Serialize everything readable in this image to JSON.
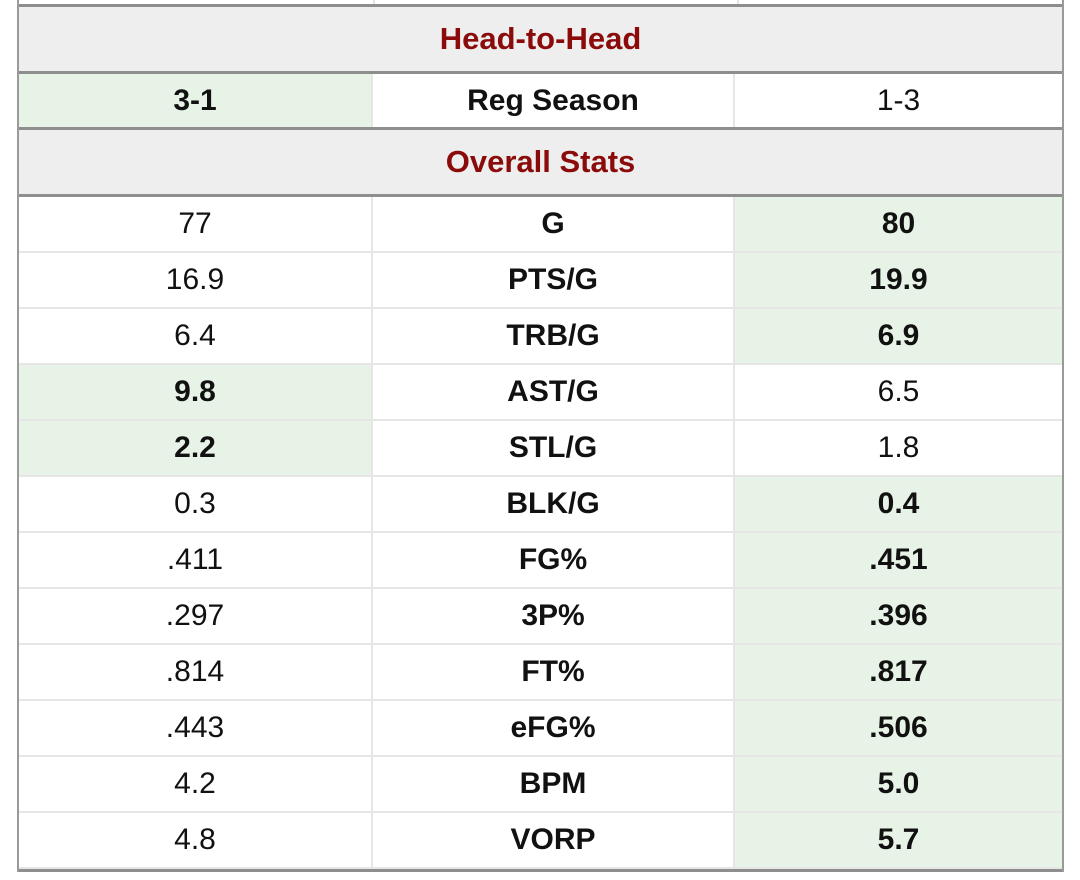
{
  "head_to_head": {
    "title": "Head-to-Head",
    "rows": [
      {
        "label": "Reg Season",
        "left": "3-1",
        "right": "1-3",
        "winner": "left"
      }
    ]
  },
  "overall": {
    "title": "Overall Stats",
    "rows": [
      {
        "label": "G",
        "left": "77",
        "right": "80",
        "winner": "right"
      },
      {
        "label": "PTS/G",
        "left": "16.9",
        "right": "19.9",
        "winner": "right"
      },
      {
        "label": "TRB/G",
        "left": "6.4",
        "right": "6.9",
        "winner": "right"
      },
      {
        "label": "AST/G",
        "left": "9.8",
        "right": "6.5",
        "winner": "left"
      },
      {
        "label": "STL/G",
        "left": "2.2",
        "right": "1.8",
        "winner": "left"
      },
      {
        "label": "BLK/G",
        "left": "0.3",
        "right": "0.4",
        "winner": "right"
      },
      {
        "label": "FG%",
        "left": ".411",
        "right": ".451",
        "winner": "right"
      },
      {
        "label": "3P%",
        "left": ".297",
        "right": ".396",
        "winner": "right"
      },
      {
        "label": "FT%",
        "left": ".814",
        "right": ".817",
        "winner": "right"
      },
      {
        "label": "eFG%",
        "left": ".443",
        "right": ".506",
        "winner": "right"
      },
      {
        "label": "BPM",
        "left": "4.2",
        "right": "5.0",
        "winner": "right"
      },
      {
        "label": "VORP",
        "left": "4.8",
        "right": "5.7",
        "winner": "right"
      }
    ]
  },
  "colors": {
    "header_text": "#8b0a0a",
    "header_bg": "#eeeeee",
    "winner_bg": "#e8f3e8"
  }
}
